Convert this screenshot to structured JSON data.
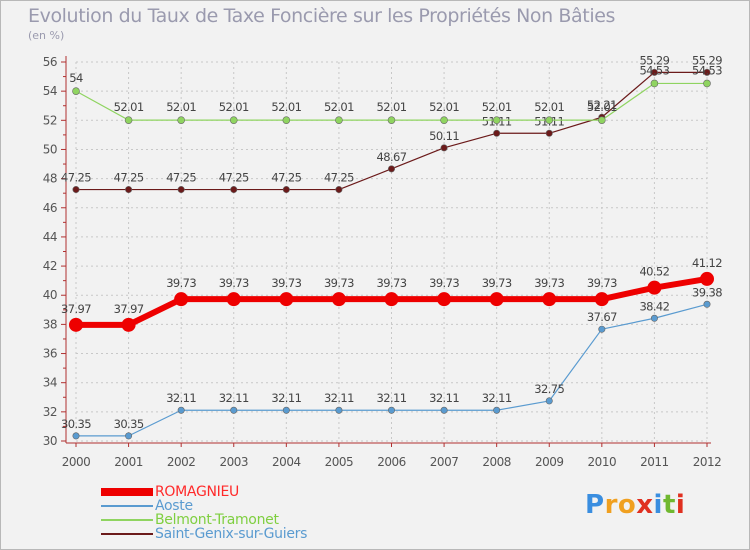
{
  "chart_data": {
    "type": "line",
    "title": "Evolution du Taux de Taxe Foncière sur les Propriétés Non Bâties",
    "ylabel": "(en %)",
    "xlabel": "",
    "ylim": [
      30,
      56
    ],
    "ytick_step": 2,
    "x": [
      "2000",
      "2001",
      "2002",
      "2003",
      "2004",
      "2005",
      "2006",
      "2007",
      "2008",
      "2009",
      "2010",
      "2011",
      "2012"
    ],
    "series": [
      {
        "name": "Saint-Genix-sur-Guiers",
        "color": "#6b1a1a",
        "width": 1.2,
        "marker": 3.2,
        "label_offset": -8,
        "values": [
          47.25,
          47.25,
          47.25,
          47.25,
          47.25,
          47.25,
          48.67,
          50.11,
          51.11,
          51.11,
          52.21,
          55.29,
          55.29
        ],
        "labels": [
          "47.25",
          "47.25",
          "47.25",
          "47.25",
          "47.25",
          "47.25",
          "48.67",
          "50.11",
          "51.11",
          "51.11",
          "52.21",
          "55.29",
          "55.29"
        ]
      },
      {
        "name": "Belmont-Tramonet",
        "color": "#8fd460",
        "width": 1.2,
        "marker": 3.5,
        "label_offset": -9,
        "values": [
          54,
          52.01,
          52.01,
          52.01,
          52.01,
          52.01,
          52.01,
          52.01,
          52.01,
          52.01,
          52.01,
          54.53,
          54.53
        ],
        "labels": [
          "54",
          "52.01",
          "52.01",
          "52.01",
          "52.01",
          "52.01",
          "52.01",
          "52.01",
          "52.01",
          "52.01",
          "52.01",
          "54.53",
          "54.53"
        ]
      },
      {
        "name": "Aoste",
        "color": "#5a9bd0",
        "width": 1.2,
        "marker": 3.2,
        "label_offset": -8,
        "values": [
          30.35,
          30.35,
          32.11,
          32.11,
          32.11,
          32.11,
          32.11,
          32.11,
          32.11,
          32.75,
          37.67,
          38.42,
          39.38
        ],
        "labels": [
          "30.35",
          "30.35",
          "32.11",
          "32.11",
          "32.11",
          "32.11",
          "32.11",
          "32.11",
          "32.11",
          "32.75",
          "37.67",
          "38.42",
          "39.38"
        ]
      },
      {
        "name": "ROMAGNIEU",
        "color": "#ee0000",
        "width": 6,
        "marker": 7,
        "label_offset": -12,
        "values": [
          37.97,
          37.97,
          39.73,
          39.73,
          39.73,
          39.73,
          39.73,
          39.73,
          39.73,
          39.73,
          39.73,
          40.52,
          41.12
        ],
        "labels": [
          "37.97",
          "37.97",
          "39.73",
          "39.73",
          "39.73",
          "39.73",
          "39.73",
          "39.73",
          "39.73",
          "39.73",
          "39.73",
          "40.52",
          "41.12"
        ]
      }
    ],
    "legend": [
      {
        "name": "ROMAGNIEU",
        "color": "#ee0000",
        "text_color": "#ff2a2a",
        "thick": 8
      },
      {
        "name": "Aoste",
        "color": "#5a9bd0",
        "text_color": "#5a9bd0",
        "thick": 2
      },
      {
        "name": "Belmont-Tramonet",
        "color": "#8fd460",
        "text_color": "#7fcf40",
        "thick": 2
      },
      {
        "name": "Saint-Genix-sur-Guiers",
        "color": "#6b1a1a",
        "text_color": "#5a9bd0",
        "thick": 2
      }
    ]
  },
  "logo": {
    "letters": [
      "P",
      "r",
      "o",
      "x",
      "i",
      "t",
      "i"
    ],
    "colors": [
      "#3a8ee0",
      "#f0a020",
      "#f0a020",
      "#e03020",
      "#3a8ee0",
      "#70b830",
      "#e03020"
    ]
  }
}
